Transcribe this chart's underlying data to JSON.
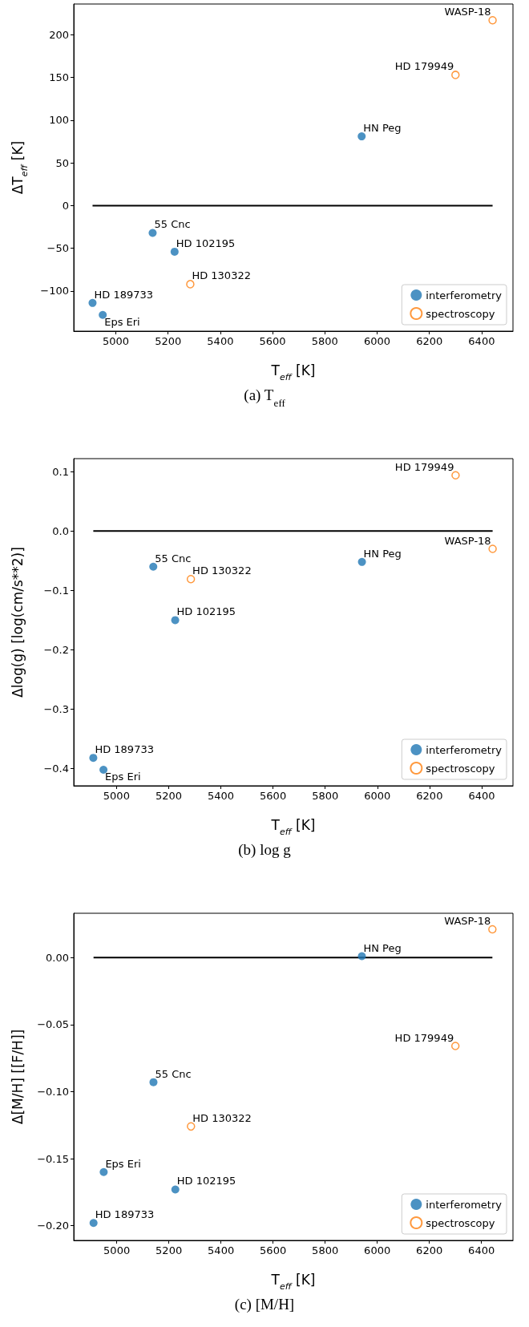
{
  "chart_data": [
    {
      "type": "scatter",
      "title": "(a) T$_{eff}$",
      "xlabel": "T$_{eff}$ [K]",
      "ylabel": "ΔT$_{eff}$ [K]",
      "legend": "bottom right",
      "grid": false,
      "xlim": [
        4839,
        6520
      ],
      "xticks": [
        5000,
        5200,
        5400,
        5600,
        5800,
        6000,
        6200,
        6400
      ],
      "ylim": [
        -147,
        236
      ],
      "yticks": [
        {
          "value": -100,
          "label": "−100"
        },
        {
          "value": -50,
          "label": "−50"
        },
        0,
        50,
        100,
        150,
        200
      ],
      "series": [
        {
          "name": "interferometry",
          "marker": "circle",
          "color": "#1f77b4",
          "x": [
            4911,
            4950,
            5141,
            5225,
            5941
          ],
          "values": [
            -114,
            -128,
            -32,
            -54,
            81
          ]
        },
        {
          "name": "spectroscopy",
          "marker": "circle",
          "color": "#ff7f0e",
          "x": [
            5285,
            6300,
            6442
          ],
          "values": [
            -92,
            153,
            217
          ]
        },
        {
          "type": "line",
          "marker": "none",
          "color": "#000000",
          "x": [
            4911,
            6442
          ],
          "values": [
            0,
            0
          ]
        }
      ],
      "annotations": [
        {
          "text": "HD 189733",
          "x": 4911,
          "y": -114
        },
        {
          "text": "Eps Eri",
          "x": 4950,
          "y": -128
        },
        {
          "text": "55 Cnc",
          "x": 5141,
          "y": -32
        },
        {
          "text": "HD 102195",
          "x": 5225,
          "y": -54
        },
        {
          "text": "HD 130322",
          "x": 5285,
          "y": -92
        },
        {
          "text": "HN Peg",
          "x": 5941,
          "y": 81
        },
        {
          "text": "HD 179949",
          "x": 6300,
          "y": 153
        },
        {
          "text": "WASP-18",
          "x": 6442,
          "y": 217
        }
      ]
    },
    {
      "type": "scatter",
      "title": "(b) log g",
      "xlabel": "T$_{eff}$ [K]",
      "ylabel": "Δlog(g) [log(cm/s**2)]",
      "legend": "bottom right",
      "grid": false,
      "xlim": [
        4836,
        6520
      ],
      "xticks": [
        5000,
        5200,
        5400,
        5600,
        5800,
        6000,
        6200,
        6400
      ],
      "ylim": [
        -0.429,
        0.122
      ],
      "yticks": [
        {
          "value": -0.4,
          "label": "−0.4"
        },
        {
          "value": -0.3,
          "label": "−0.3"
        },
        {
          "value": -0.2,
          "label": "−0.2"
        },
        {
          "value": -0.1,
          "label": "−0.1"
        },
        {
          "value": 0,
          "label": "0.0"
        },
        0.1
      ],
      "series": [
        {
          "name": "interferometry",
          "marker": "circle",
          "color": "#1f77b4",
          "x": [
            4911,
            4950,
            5141,
            5225,
            5941
          ],
          "values": [
            -0.382,
            -0.402,
            -0.06,
            -0.15,
            -0.052
          ]
        },
        {
          "name": "spectroscopy",
          "marker": "circle",
          "color": "#ff7f0e",
          "x": [
            5285,
            6300,
            6442
          ],
          "values": [
            -0.081,
            0.094,
            -0.03
          ]
        },
        {
          "type": "line",
          "marker": "none",
          "color": "#000000",
          "x": [
            4911,
            6442
          ],
          "values": [
            0,
            0
          ]
        }
      ],
      "annotations": [
        {
          "text": "HD 189733",
          "x": 4911,
          "y": -0.382
        },
        {
          "text": "Eps Eri",
          "x": 4950,
          "y": -0.402
        },
        {
          "text": "55 Cnc",
          "x": 5141,
          "y": -0.06
        },
        {
          "text": "HD 102195",
          "x": 5225,
          "y": -0.15
        },
        {
          "text": "HD 130322",
          "x": 5285,
          "y": -0.081
        },
        {
          "text": "HN Peg",
          "x": 5941,
          "y": -0.052
        },
        {
          "text": "HD 179949",
          "x": 6300,
          "y": 0.094
        },
        {
          "text": "WASP-18",
          "x": 6442,
          "y": -0.03
        }
      ]
    },
    {
      "type": "scatter",
      "title": "(c) [M/H]",
      "xlabel": "T$_{eff}$ [K]",
      "ylabel": "Δ[M/H] [[F/H]]",
      "legend": "bottom right",
      "grid": false,
      "xlim": [
        4835,
        6521
      ],
      "xticks": [
        5000,
        5200,
        5400,
        5600,
        5800,
        6000,
        6200,
        6400
      ],
      "ylim": [
        -0.211,
        0.033
      ],
      "yticks": [
        {
          "value": -0.2,
          "label": "−0.20"
        },
        {
          "value": -0.15,
          "label": "−0.15"
        },
        {
          "value": -0.1,
          "label": "−0.10"
        },
        {
          "value": -0.05,
          "label": "−0.05"
        },
        {
          "value": 0,
          "label": "0.00"
        }
      ],
      "series": [
        {
          "name": "interferometry",
          "marker": "circle",
          "color": "#1f77b4",
          "x": [
            4911,
            4950,
            5141,
            5225,
            5941
          ],
          "values": [
            -0.198,
            -0.16,
            -0.093,
            -0.173,
            0.001
          ]
        },
        {
          "name": "spectroscopy",
          "marker": "circle",
          "color": "#ff7f0e",
          "x": [
            5285,
            6300,
            6442
          ],
          "values": [
            -0.126,
            -0.066,
            0.021
          ]
        },
        {
          "type": "line",
          "marker": "none",
          "color": "#000000",
          "x": [
            4911,
            6442
          ],
          "values": [
            0,
            0
          ]
        }
      ],
      "annotations": [
        {
          "text": "HD 189733",
          "x": 4911,
          "y": -0.198
        },
        {
          "text": "Eps Eri",
          "x": 4950,
          "y": -0.16
        },
        {
          "text": "55 Cnc",
          "x": 5141,
          "y": -0.093
        },
        {
          "text": "HD 102195",
          "x": 5225,
          "y": -0.173
        },
        {
          "text": "HD 130322",
          "x": 5285,
          "y": -0.126
        },
        {
          "text": "HN Peg",
          "x": 5941,
          "y": 0.001
        },
        {
          "text": "HD 179949",
          "x": 6300,
          "y": -0.066
        },
        {
          "text": "WASP-18",
          "x": 6442,
          "y": 0.021
        }
      ]
    }
  ]
}
